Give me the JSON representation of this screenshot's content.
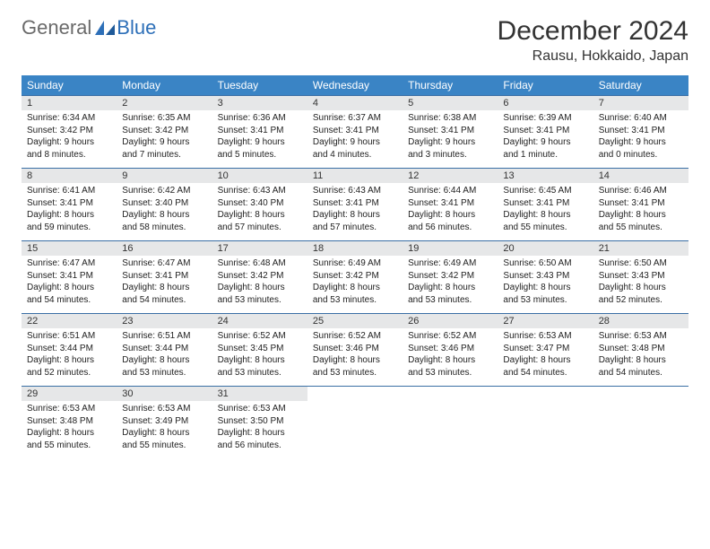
{
  "logo": {
    "general": "General",
    "blue": "Blue"
  },
  "header": {
    "month_title": "December 2024",
    "location": "Rausu, Hokkaido, Japan"
  },
  "style": {
    "header_bg": "#3a84c5",
    "header_fg": "#ffffff",
    "daynum_bg": "#e6e7e8",
    "rule_color": "#3a6fa5",
    "text_color": "#222222",
    "page_bg": "#ffffff",
    "logo_gray": "#6a6a6a",
    "logo_blue": "#2d6fb8",
    "title_fontsize": 30,
    "location_fontsize": 16,
    "dayhead_fontsize": 12,
    "daynum_fontsize": 11,
    "body_fontsize": 10
  },
  "day_headers": [
    "Sunday",
    "Monday",
    "Tuesday",
    "Wednesday",
    "Thursday",
    "Friday",
    "Saturday"
  ],
  "weeks": [
    [
      {
        "n": "1",
        "sunrise": "Sunrise: 6:34 AM",
        "sunset": "Sunset: 3:42 PM",
        "daylight": "Daylight: 9 hours and 8 minutes."
      },
      {
        "n": "2",
        "sunrise": "Sunrise: 6:35 AM",
        "sunset": "Sunset: 3:42 PM",
        "daylight": "Daylight: 9 hours and 7 minutes."
      },
      {
        "n": "3",
        "sunrise": "Sunrise: 6:36 AM",
        "sunset": "Sunset: 3:41 PM",
        "daylight": "Daylight: 9 hours and 5 minutes."
      },
      {
        "n": "4",
        "sunrise": "Sunrise: 6:37 AM",
        "sunset": "Sunset: 3:41 PM",
        "daylight": "Daylight: 9 hours and 4 minutes."
      },
      {
        "n": "5",
        "sunrise": "Sunrise: 6:38 AM",
        "sunset": "Sunset: 3:41 PM",
        "daylight": "Daylight: 9 hours and 3 minutes."
      },
      {
        "n": "6",
        "sunrise": "Sunrise: 6:39 AM",
        "sunset": "Sunset: 3:41 PM",
        "daylight": "Daylight: 9 hours and 1 minute."
      },
      {
        "n": "7",
        "sunrise": "Sunrise: 6:40 AM",
        "sunset": "Sunset: 3:41 PM",
        "daylight": "Daylight: 9 hours and 0 minutes."
      }
    ],
    [
      {
        "n": "8",
        "sunrise": "Sunrise: 6:41 AM",
        "sunset": "Sunset: 3:41 PM",
        "daylight": "Daylight: 8 hours and 59 minutes."
      },
      {
        "n": "9",
        "sunrise": "Sunrise: 6:42 AM",
        "sunset": "Sunset: 3:40 PM",
        "daylight": "Daylight: 8 hours and 58 minutes."
      },
      {
        "n": "10",
        "sunrise": "Sunrise: 6:43 AM",
        "sunset": "Sunset: 3:40 PM",
        "daylight": "Daylight: 8 hours and 57 minutes."
      },
      {
        "n": "11",
        "sunrise": "Sunrise: 6:43 AM",
        "sunset": "Sunset: 3:41 PM",
        "daylight": "Daylight: 8 hours and 57 minutes."
      },
      {
        "n": "12",
        "sunrise": "Sunrise: 6:44 AM",
        "sunset": "Sunset: 3:41 PM",
        "daylight": "Daylight: 8 hours and 56 minutes."
      },
      {
        "n": "13",
        "sunrise": "Sunrise: 6:45 AM",
        "sunset": "Sunset: 3:41 PM",
        "daylight": "Daylight: 8 hours and 55 minutes."
      },
      {
        "n": "14",
        "sunrise": "Sunrise: 6:46 AM",
        "sunset": "Sunset: 3:41 PM",
        "daylight": "Daylight: 8 hours and 55 minutes."
      }
    ],
    [
      {
        "n": "15",
        "sunrise": "Sunrise: 6:47 AM",
        "sunset": "Sunset: 3:41 PM",
        "daylight": "Daylight: 8 hours and 54 minutes."
      },
      {
        "n": "16",
        "sunrise": "Sunrise: 6:47 AM",
        "sunset": "Sunset: 3:41 PM",
        "daylight": "Daylight: 8 hours and 54 minutes."
      },
      {
        "n": "17",
        "sunrise": "Sunrise: 6:48 AM",
        "sunset": "Sunset: 3:42 PM",
        "daylight": "Daylight: 8 hours and 53 minutes."
      },
      {
        "n": "18",
        "sunrise": "Sunrise: 6:49 AM",
        "sunset": "Sunset: 3:42 PM",
        "daylight": "Daylight: 8 hours and 53 minutes."
      },
      {
        "n": "19",
        "sunrise": "Sunrise: 6:49 AM",
        "sunset": "Sunset: 3:42 PM",
        "daylight": "Daylight: 8 hours and 53 minutes."
      },
      {
        "n": "20",
        "sunrise": "Sunrise: 6:50 AM",
        "sunset": "Sunset: 3:43 PM",
        "daylight": "Daylight: 8 hours and 53 minutes."
      },
      {
        "n": "21",
        "sunrise": "Sunrise: 6:50 AM",
        "sunset": "Sunset: 3:43 PM",
        "daylight": "Daylight: 8 hours and 52 minutes."
      }
    ],
    [
      {
        "n": "22",
        "sunrise": "Sunrise: 6:51 AM",
        "sunset": "Sunset: 3:44 PM",
        "daylight": "Daylight: 8 hours and 52 minutes."
      },
      {
        "n": "23",
        "sunrise": "Sunrise: 6:51 AM",
        "sunset": "Sunset: 3:44 PM",
        "daylight": "Daylight: 8 hours and 53 minutes."
      },
      {
        "n": "24",
        "sunrise": "Sunrise: 6:52 AM",
        "sunset": "Sunset: 3:45 PM",
        "daylight": "Daylight: 8 hours and 53 minutes."
      },
      {
        "n": "25",
        "sunrise": "Sunrise: 6:52 AM",
        "sunset": "Sunset: 3:46 PM",
        "daylight": "Daylight: 8 hours and 53 minutes."
      },
      {
        "n": "26",
        "sunrise": "Sunrise: 6:52 AM",
        "sunset": "Sunset: 3:46 PM",
        "daylight": "Daylight: 8 hours and 53 minutes."
      },
      {
        "n": "27",
        "sunrise": "Sunrise: 6:53 AM",
        "sunset": "Sunset: 3:47 PM",
        "daylight": "Daylight: 8 hours and 54 minutes."
      },
      {
        "n": "28",
        "sunrise": "Sunrise: 6:53 AM",
        "sunset": "Sunset: 3:48 PM",
        "daylight": "Daylight: 8 hours and 54 minutes."
      }
    ],
    [
      {
        "n": "29",
        "sunrise": "Sunrise: 6:53 AM",
        "sunset": "Sunset: 3:48 PM",
        "daylight": "Daylight: 8 hours and 55 minutes."
      },
      {
        "n": "30",
        "sunrise": "Sunrise: 6:53 AM",
        "sunset": "Sunset: 3:49 PM",
        "daylight": "Daylight: 8 hours and 55 minutes."
      },
      {
        "n": "31",
        "sunrise": "Sunrise: 6:53 AM",
        "sunset": "Sunset: 3:50 PM",
        "daylight": "Daylight: 8 hours and 56 minutes."
      },
      null,
      null,
      null,
      null
    ]
  ]
}
